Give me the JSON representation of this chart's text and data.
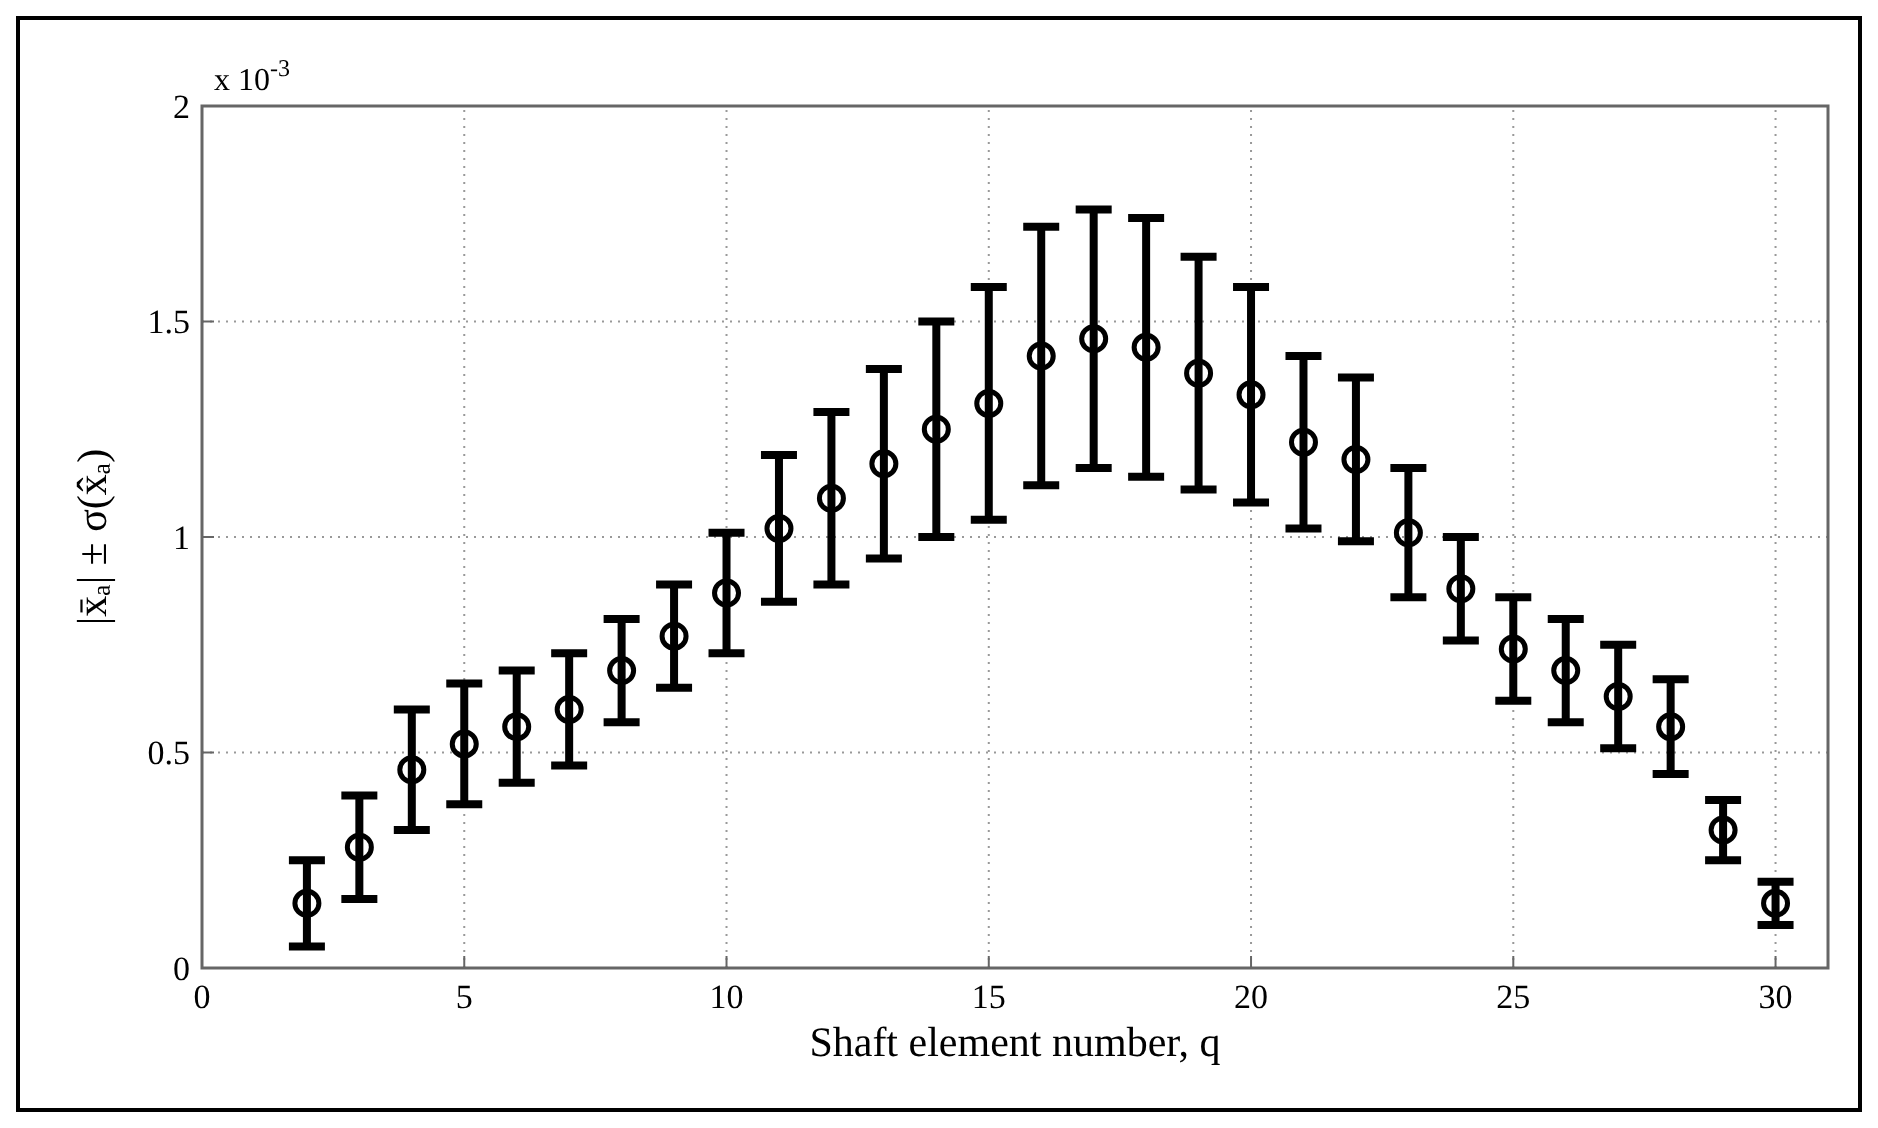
{
  "chart_data": {
    "type": "scatter",
    "xlabel": "Shaft element number, q",
    "ylabel": "|x̄ₐ| ± σ(x̂ₐ)",
    "annotations": [
      "x 10$^{-3}$"
    ],
    "x": [
      2,
      3,
      4,
      5,
      6,
      7,
      8,
      9,
      10,
      11,
      12,
      13,
      14,
      15,
      16,
      17,
      18,
      19,
      20,
      21,
      22,
      23,
      24,
      25,
      26,
      27,
      28,
      29,
      30
    ],
    "series": [
      {
        "color": "#000000",
        "values": [
          0.15,
          0.28,
          0.46,
          0.52,
          0.56,
          0.6,
          0.69,
          0.77,
          0.87,
          1.02,
          1.09,
          1.17,
          1.25,
          1.31,
          1.42,
          1.46,
          1.44,
          1.38,
          1.33,
          1.22,
          1.18,
          1.01,
          0.88,
          0.74,
          0.69,
          0.63,
          0.56,
          0.32,
          0.15
        ],
        "errors": [
          0.1,
          0.12,
          0.14,
          0.14,
          0.13,
          0.13,
          0.12,
          0.12,
          0.14,
          0.17,
          0.2,
          0.22,
          0.25,
          0.27,
          0.3,
          0.3,
          0.3,
          0.27,
          0.25,
          0.2,
          0.19,
          0.15,
          0.12,
          0.12,
          0.12,
          0.12,
          0.11,
          0.07,
          0.05
        ]
      }
    ],
    "xlim": [
      0,
      31
    ],
    "xticks": [
      0,
      5,
      10,
      15,
      20,
      25,
      30
    ],
    "ylim": [
      0,
      2
    ],
    "yticks": [
      0,
      0.5,
      1,
      1.5,
      2
    ],
    "grid": true,
    "marker": "circle"
  }
}
